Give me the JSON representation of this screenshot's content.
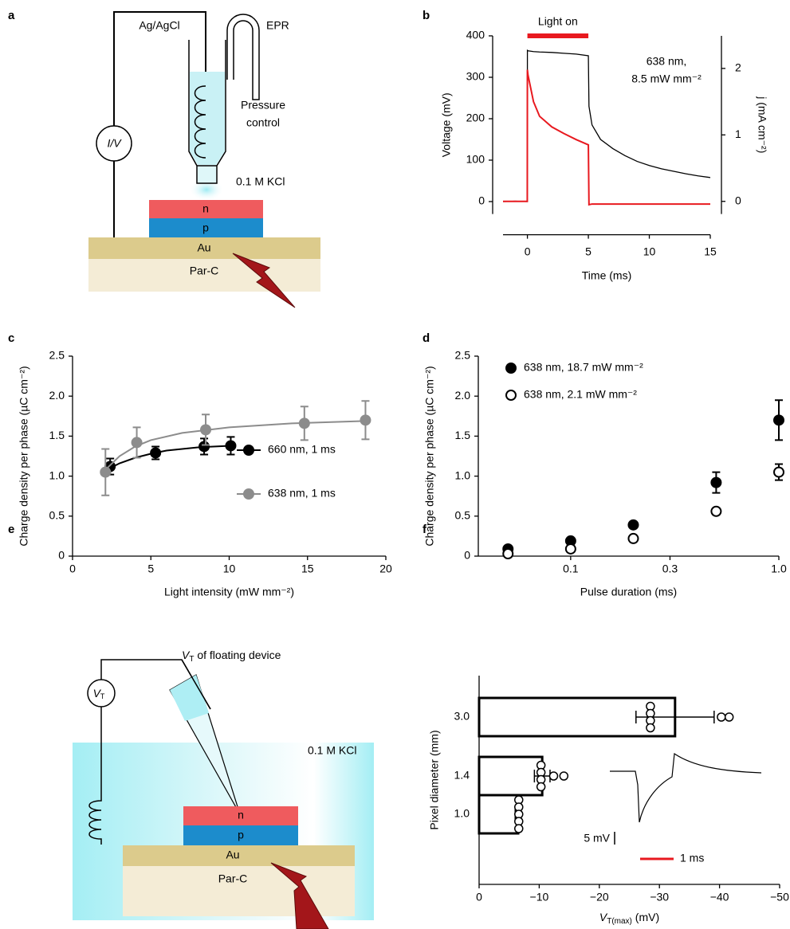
{
  "panel_labels": [
    "a",
    "b",
    "c",
    "d",
    "e",
    "f"
  ],
  "diagram_a": {
    "electrode": "Ag/AgCl",
    "tube": "EPR",
    "pressure": [
      "Pressure",
      "control"
    ],
    "meter": "I/V",
    "solution": "0.1 M KCl",
    "layers": [
      "n",
      "p",
      "Au",
      "Par-C"
    ]
  },
  "diagram_e": {
    "probe": [
      "V",
      "T",
      " of floating device"
    ],
    "meter": [
      "V",
      "T"
    ],
    "solution": "0.1 M KCl",
    "layers": [
      "n",
      "p",
      "Au",
      "Par-C"
    ]
  },
  "chart_data": [
    {
      "type": "line",
      "annotation": "Light on",
      "light_on": [
        0,
        5
      ],
      "light_color": "#e8191f",
      "note": [
        "638 nm,",
        "8.5 mW mm⁻²"
      ],
      "xlabel": "Time (ms)",
      "ylabel": "Voltage (mV)",
      "y2label": "j (mA cm⁻²)",
      "y2label_color": "#e8191f",
      "x": [
        -2,
        -1,
        -0.01,
        0,
        0.05,
        0.5,
        1,
        2,
        3,
        4,
        5,
        5.05,
        5.3,
        6,
        7,
        8,
        9,
        10,
        11,
        12,
        13,
        14,
        15
      ],
      "series": [
        {
          "color": "#000000",
          "values": [
            0,
            1,
            0,
            365,
            364,
            362,
            361,
            360,
            358,
            356,
            352,
            230,
            185,
            150,
            128,
            111,
            97,
            87,
            79,
            73,
            67,
            62,
            58
          ]
        },
        {
          "color": "#e8191f",
          "axis": "y2",
          "values": [
            0,
            0,
            0,
            1.98,
            1.9,
            1.5,
            1.28,
            1.12,
            1.02,
            0.93,
            0.85,
            -0.05,
            -0.04,
            -0.04,
            -0.04,
            -0.04,
            -0.04,
            -0.04,
            -0.04,
            -0.04,
            -0.04,
            -0.04,
            -0.04
          ]
        }
      ],
      "xlim": [
        -2,
        15
      ],
      "xticks": [
        0,
        5,
        10,
        15
      ],
      "ylim": [
        -30,
        400
      ],
      "yticks": [
        0,
        100,
        200,
        300,
        400
      ],
      "y2lim": [
        -0.19,
        2.49
      ],
      "y2ticks": [
        0,
        1,
        2
      ]
    },
    {
      "type": "scatter",
      "xlabel": "Light intensity (mW mm⁻²)",
      "ylabel": "Charge density per phase (µC cm⁻²)",
      "legend": "center-right",
      "xlim": [
        0,
        20
      ],
      "xticks": [
        0,
        5,
        10,
        15,
        20
      ],
      "ylim": [
        0,
        2.5
      ],
      "yticks": [
        0,
        0.5,
        {
          "value": 1,
          "label": "1.0"
        },
        1.5,
        {
          "value": 2,
          "label": "2.0"
        },
        2.5
      ],
      "series": [
        {
          "name": "660 nm, 1 ms",
          "color": "#000000",
          "marker": "filled",
          "x": [
            2.4,
            5.3,
            8.4,
            10.1
          ],
          "values": [
            1.12,
            1.29,
            1.37,
            1.38
          ],
          "errors": [
            0.1,
            0.08,
            0.1,
            0.11
          ],
          "fit": {
            "x": [
              2.4,
              3,
              4,
              5,
              6,
              8,
              10.1
            ],
            "values": [
              1.1,
              1.16,
              1.23,
              1.28,
              1.32,
              1.36,
              1.38
            ]
          }
        },
        {
          "name": "638 nm, 1 ms",
          "color": "#8c8c8c",
          "marker": "filled",
          "x": [
            2.1,
            4.1,
            8.5,
            14.8,
            18.7
          ],
          "values": [
            1.05,
            1.42,
            1.58,
            1.66,
            1.7
          ],
          "errors": [
            0.29,
            0.19,
            0.19,
            0.21,
            0.24
          ],
          "fit": {
            "x": [
              2.1,
              3,
              4,
              5,
              7,
              10,
              14,
              18.7
            ],
            "values": [
              1.08,
              1.25,
              1.37,
              1.45,
              1.54,
              1.61,
              1.66,
              1.69
            ]
          }
        }
      ]
    },
    {
      "type": "scatter",
      "xscale": "log",
      "xlabel": "Pulse duration (ms)",
      "ylabel": "Charge density per phase (µC cm⁻²)",
      "legend": "upper-left",
      "xlim": [
        0.036,
        1
      ],
      "xticks": [
        0.1,
        0.3,
        {
          "value": 1,
          "label": "1.0"
        }
      ],
      "ylim": [
        0,
        2.5
      ],
      "yticks": [
        0,
        0.5,
        {
          "value": 1,
          "label": "1.0"
        },
        1.5,
        {
          "value": 2,
          "label": "2.0"
        },
        2.5
      ],
      "series": [
        {
          "name": "638 nm, 18.7 mW mm⁻²",
          "color": "#000000",
          "marker": "filled",
          "x": [
            0.05,
            0.1,
            0.2,
            0.5,
            1
          ],
          "values": [
            0.09,
            0.19,
            0.39,
            0.92,
            1.7
          ],
          "errors": [
            0.02,
            0.02,
            0.03,
            0.13,
            0.25
          ]
        },
        {
          "name": "638 nm, 2.1 mW mm⁻²",
          "color": "#000000",
          "marker": "open",
          "x": [
            0.05,
            0.1,
            0.2,
            0.5,
            1
          ],
          "values": [
            0.03,
            0.09,
            0.22,
            0.56,
            1.05
          ],
          "errors": [
            0.01,
            0.01,
            0.02,
            0.04,
            0.1
          ]
        }
      ]
    },
    {
      "type": "bar",
      "orientation": "horizontal",
      "ylabel": "Pixel diameter (mm)",
      "xlabel": [
        "V",
        "T(max)",
        " (mV)"
      ],
      "categories": [
        "3.0",
        "1.4",
        "1.0"
      ],
      "values": [
        -32.6,
        -10.5,
        -6.5
      ],
      "errors": [
        6.5,
        1.3,
        0.5
      ],
      "points": [
        [
          -28.5,
          -28.5,
          -28.5,
          -28.5,
          -40.3,
          -41.6
        ],
        [
          -10.3,
          -10.3,
          -10.3,
          -10.3,
          -12.4,
          -14.1
        ],
        [
          -6.6,
          -6.6,
          -6.6,
          -6.6,
          -6.6
        ]
      ],
      "color": "#000000",
      "xlim": [
        0,
        -50
      ],
      "xticks": [
        0,
        {
          "value": -10,
          "label": "−10"
        },
        {
          "value": -20,
          "label": "−20"
        },
        {
          "value": -30,
          "label": "−30"
        },
        {
          "value": -40,
          "label": "−40"
        },
        {
          "value": -50,
          "label": "−50"
        }
      ],
      "inset": {
        "scale_v": "5 mV",
        "scale_t": "1 ms",
        "scale_t_color": "#e8191f"
      }
    }
  ]
}
